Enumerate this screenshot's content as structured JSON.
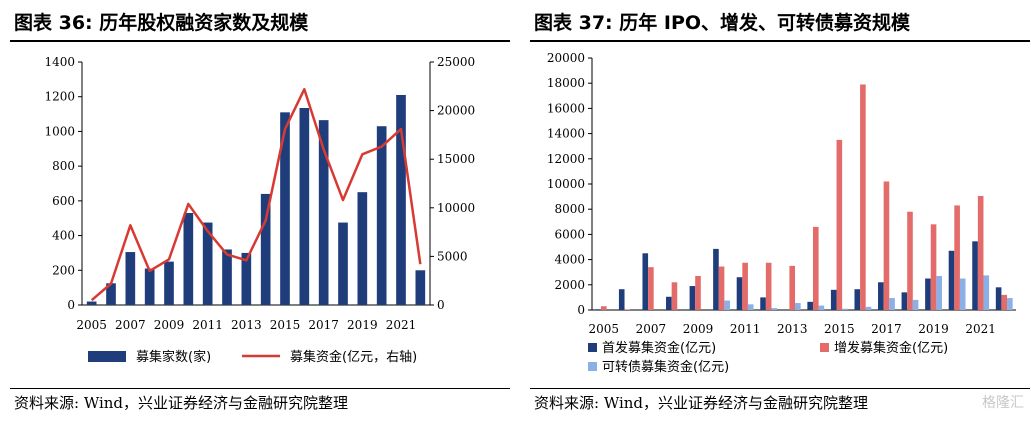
{
  "left": {
    "title": "图表 36:  历年股权融资家数及规模",
    "source": "资料来源:  Wind，兴业证券经济与金融研究院整理",
    "chart_data": {
      "type": "bar",
      "categories": [
        "2005",
        "2006",
        "2007",
        "2008",
        "2009",
        "2010",
        "2011",
        "2012",
        "2013",
        "2014",
        "2015",
        "2016",
        "2017",
        "2018",
        "2019",
        "2020",
        "2021",
        "2022"
      ],
      "xtick_labels": [
        "2005",
        "2007",
        "2009",
        "2011",
        "2013",
        "2015",
        "2017",
        "2019",
        "2021"
      ],
      "series": [
        {
          "name": "募集家数(家)",
          "kind": "bar",
          "axis": "left",
          "color": "#1f3d7a",
          "values": [
            20,
            125,
            305,
            210,
            250,
            530,
            475,
            320,
            300,
            640,
            1110,
            1135,
            1065,
            475,
            650,
            1030,
            1210,
            200
          ]
        },
        {
          "name": "募集资金(亿元，右轴)",
          "kind": "line",
          "axis": "right",
          "color": "#d83a33",
          "values": [
            500,
            2200,
            8200,
            3500,
            4700,
            10400,
            7600,
            5200,
            4600,
            8700,
            18100,
            22200,
            16000,
            10800,
            15500,
            16300,
            18100,
            4200
          ]
        }
      ],
      "ylim_left": [
        0,
        1400
      ],
      "yticks_left": [
        "0",
        "200",
        "400",
        "600",
        "800",
        "1000",
        "1200",
        "1400"
      ],
      "ylim_right": [
        0,
        25000
      ],
      "yticks_right": [
        "0",
        "5000",
        "10000",
        "15000",
        "20000",
        "25000"
      ],
      "legend_position": "bottom"
    }
  },
  "right": {
    "title": "图表 37:  历年 IPO、增发、可转债募资规模",
    "source": "资料来源:  Wind，兴业证券经济与金融研究院整理",
    "logo": "格隆汇",
    "chart_data": {
      "type": "bar",
      "categories": [
        "2005",
        "2006",
        "2007",
        "2008",
        "2009",
        "2010",
        "2011",
        "2012",
        "2013",
        "2014",
        "2015",
        "2016",
        "2017",
        "2018",
        "2019",
        "2020",
        "2021",
        "2022"
      ],
      "xtick_labels": [
        "2005",
        "2007",
        "2009",
        "2011",
        "2013",
        "2015",
        "2017",
        "2019",
        "2021"
      ],
      "series": [
        {
          "name": "首发募集资金(亿元)",
          "color": "#1f3d7a",
          "values": [
            60,
            1650,
            4500,
            1050,
            1900,
            4850,
            2600,
            1000,
            0,
            650,
            1600,
            1650,
            2200,
            1400,
            2500,
            4700,
            5450,
            1800
          ]
        },
        {
          "name": "增发募集资金(亿元)",
          "color": "#e36c6a",
          "values": [
            300,
            50,
            3400,
            2200,
            2700,
            3450,
            3750,
            3750,
            3500,
            6600,
            13500,
            17900,
            10200,
            7800,
            6800,
            8300,
            9050,
            1200
          ]
        },
        {
          "name": "可转债募集资金(亿元)",
          "color": "#8ab0e6",
          "values": [
            0,
            0,
            0,
            0,
            0,
            750,
            450,
            150,
            550,
            350,
            100,
            250,
            950,
            800,
            2700,
            2500,
            2750,
            950
          ]
        }
      ],
      "ylim": [
        0,
        20000
      ],
      "yticks": [
        "0",
        "2000",
        "4000",
        "6000",
        "8000",
        "10000",
        "12000",
        "14000",
        "16000",
        "18000",
        "20000"
      ],
      "legend_position": "bottom"
    }
  }
}
